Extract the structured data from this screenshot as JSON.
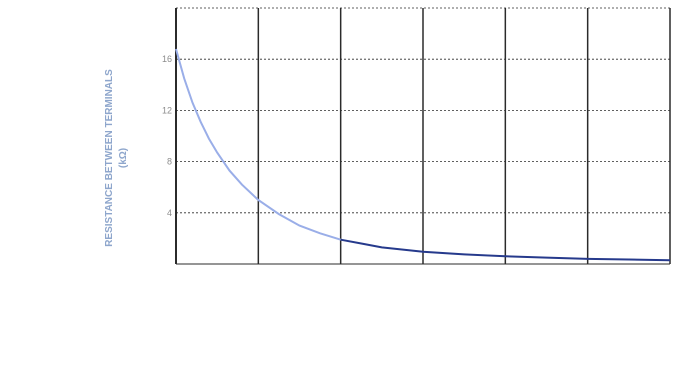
{
  "chart_data": {
    "type": "line",
    "title": "",
    "xlabel": "",
    "ylabel": "RESISTANCE BETWEEN TERMINALS",
    "ylabel_unit": "(kΩ)",
    "xlim": [
      0,
      120
    ],
    "ylim": [
      0,
      20
    ],
    "x_ticks": [
      0,
      20,
      40,
      60,
      80,
      100,
      120
    ],
    "y_ticks": [
      0,
      4,
      8,
      12,
      16,
      20
    ],
    "y_tick_labels": [
      "",
      "4",
      "8",
      "12",
      "16",
      ""
    ],
    "grid": true,
    "legend_position": "top-right",
    "legend": [
      "",
      ""
    ],
    "colors": {
      "curve": "#9aaee8",
      "tail": "#263a8c",
      "grid": "#2b2b2b",
      "axis": "#2b2b2b"
    },
    "series": [
      {
        "name": "",
        "x": [
          0,
          2,
          4,
          6,
          8,
          10,
          13,
          16,
          20,
          25,
          30,
          35,
          40,
          45,
          50,
          60,
          70,
          80,
          90,
          100,
          110,
          120
        ],
        "values": [
          16.8,
          14.5,
          12.6,
          11.1,
          9.8,
          8.7,
          7.3,
          6.2,
          5.0,
          3.9,
          3.0,
          2.4,
          1.9,
          1.6,
          1.3,
          0.95,
          0.75,
          0.6,
          0.5,
          0.4,
          0.35,
          0.3
        ]
      }
    ]
  }
}
